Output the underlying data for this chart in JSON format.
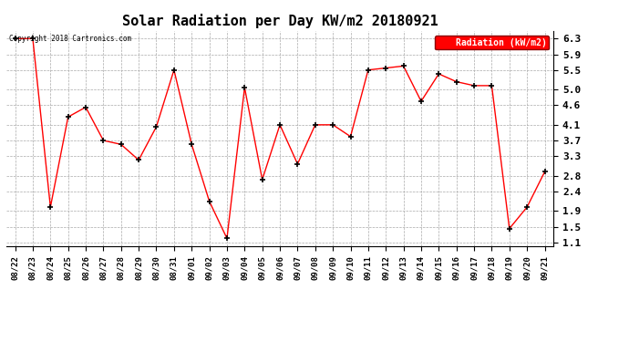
{
  "title": "Solar Radiation per Day KW/m2 20180921",
  "legend_label": "Radiation (kW/m2)",
  "copyright": "Copyright 2018 Cartronics.com",
  "dates": [
    "08/22",
    "08/23",
    "08/24",
    "08/25",
    "08/26",
    "08/27",
    "08/28",
    "08/29",
    "08/30",
    "08/31",
    "09/01",
    "09/02",
    "09/03",
    "09/04",
    "09/05",
    "09/06",
    "09/07",
    "09/08",
    "09/09",
    "09/10",
    "09/11",
    "09/12",
    "09/13",
    "09/14",
    "09/15",
    "09/16",
    "09/17",
    "09/18",
    "09/19",
    "09/20",
    "09/21"
  ],
  "values": [
    6.3,
    6.3,
    2.0,
    4.3,
    4.55,
    3.7,
    3.6,
    3.2,
    4.05,
    5.5,
    3.6,
    2.15,
    1.2,
    5.05,
    2.7,
    4.1,
    3.1,
    4.1,
    4.1,
    3.8,
    5.5,
    5.55,
    5.6,
    4.7,
    5.4,
    5.2,
    5.1,
    5.1,
    1.45,
    2.0,
    2.9
  ],
  "ylim": [
    1.0,
    6.5
  ],
  "yticks": [
    1.1,
    1.5,
    1.9,
    2.4,
    2.8,
    3.3,
    3.7,
    4.1,
    4.6,
    5.0,
    5.5,
    5.9,
    6.3
  ],
  "line_color": "red",
  "marker_color": "black",
  "bg_color": "#ffffff",
  "plot_bg_color": "#ffffff",
  "grid_color": "#aaaaaa",
  "title_fontsize": 11,
  "legend_bg_color": "red",
  "legend_text_color": "white"
}
